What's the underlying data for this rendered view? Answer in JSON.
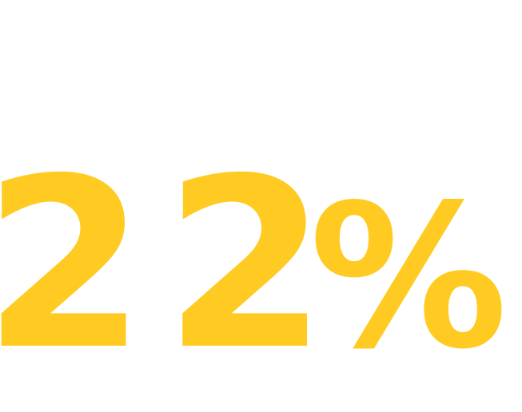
{
  "stat": {
    "value": "22",
    "unit": "%",
    "color": "#FFCB22"
  }
}
